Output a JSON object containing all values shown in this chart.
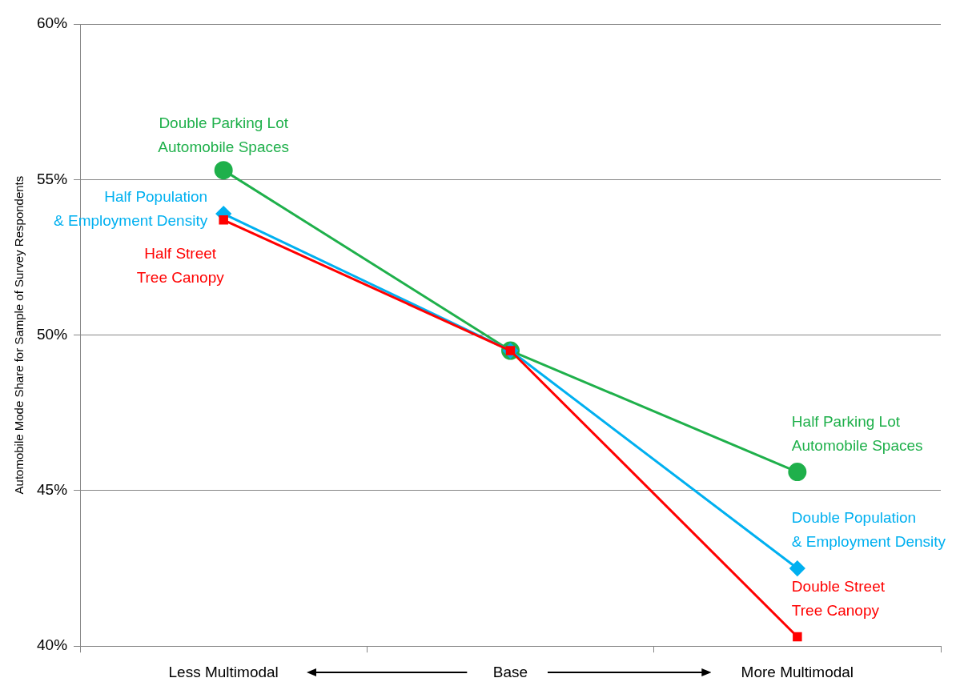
{
  "chart_data": {
    "type": "line",
    "ylabel": "Automobile Mode Share for Sample of Survey Respondents",
    "categories": [
      "Less Multimodal",
      "Base",
      "More Multimodal"
    ],
    "series": [
      {
        "color": "#1fb04b",
        "values": [
          55.3,
          49.5,
          45.6
        ],
        "marker": "circle"
      },
      {
        "color": "#00b0f0",
        "values": [
          53.9,
          49.5,
          42.5
        ],
        "marker": "diamond"
      },
      {
        "color": "#ff0000",
        "values": [
          53.7,
          49.5,
          40.3
        ],
        "marker": "square"
      }
    ],
    "ylim": [
      40,
      60
    ],
    "yticks": [
      {
        "value": 40,
        "label": "40%"
      },
      {
        "value": 45,
        "label": "45%"
      },
      {
        "value": 50,
        "label": "50%"
      },
      {
        "value": 55,
        "label": "55%"
      },
      {
        "value": 60,
        "label": "60%"
      }
    ],
    "grid": "y",
    "legend": false,
    "line_style": "solid",
    "annotations": [
      {
        "text": "Double Parking Lot\nAutomobile Spaces",
        "x": "Less Multimodal",
        "y": 55.3
      },
      {
        "text": "Half Population\n& Employment Density",
        "x": "Less Multimodal",
        "y": 53.9
      },
      {
        "text": "Half Street\nTree Canopy",
        "x": "Less Multimodal",
        "y": 53.7
      },
      {
        "text": "Half Parking Lot\nAutomobile Spaces",
        "x": "More Multimodal",
        "y": 45.6
      },
      {
        "text": "Double Population\n& Employment Density",
        "x": "More Multimodal",
        "y": 42.5
      },
      {
        "text": "Double Street\nTree Canopy",
        "x": "More Multimodal",
        "y": 40.3
      }
    ]
  }
}
